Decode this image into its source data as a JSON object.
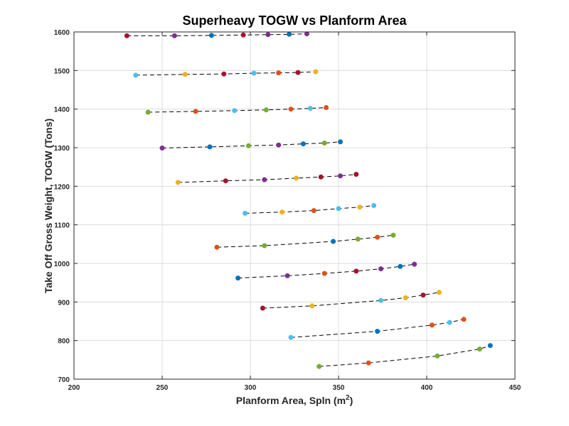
{
  "chart_data": {
    "type": "line",
    "title": "Superheavy TOGW vs Planform Area",
    "xlabel": {
      "prefix": "Planform Area, Spln (m",
      "sup": "2",
      "suffix": ")"
    },
    "ylabel": "Take Off Gross Weight, TOGW (Tons)",
    "xlim": [
      200,
      450
    ],
    "ylim": [
      700,
      1600
    ],
    "xticks": [
      200,
      250,
      300,
      350,
      400,
      450
    ],
    "yticks": [
      700,
      800,
      900,
      1000,
      1100,
      1200,
      1300,
      1400,
      1500,
      1600
    ],
    "grid": true,
    "legend": "none",
    "line_color": "#000000",
    "palette": [
      "#0072BD",
      "#D95319",
      "#EDB120",
      "#7E2F8E",
      "#77AC30",
      "#4DBEEE",
      "#A2142F"
    ],
    "series": [
      {
        "points": [
          [
            230,
            1590,
            6
          ],
          [
            257,
            1590,
            3
          ],
          [
            278,
            1591,
            0
          ],
          [
            296,
            1592,
            6
          ],
          [
            310,
            1593,
            3
          ],
          [
            322,
            1594,
            0
          ],
          [
            332,
            1595,
            3
          ]
        ]
      },
      {
        "points": [
          [
            235,
            1488,
            5
          ],
          [
            263,
            1490,
            2
          ],
          [
            285,
            1491,
            6
          ],
          [
            302,
            1493,
            5
          ],
          [
            316,
            1494,
            1
          ],
          [
            327,
            1495,
            6
          ],
          [
            337,
            1497,
            2
          ]
        ]
      },
      {
        "points": [
          [
            242,
            1392,
            4
          ],
          [
            269,
            1394,
            1
          ],
          [
            291,
            1396,
            5
          ],
          [
            309,
            1398,
            4
          ],
          [
            323,
            1400,
            1
          ],
          [
            334,
            1402,
            5
          ],
          [
            343,
            1404,
            1
          ]
        ]
      },
      {
        "points": [
          [
            250,
            1299,
            3
          ],
          [
            277,
            1302,
            0
          ],
          [
            299,
            1305,
            4
          ],
          [
            316,
            1307,
            3
          ],
          [
            330,
            1310,
            0
          ],
          [
            342,
            1312,
            4
          ],
          [
            351,
            1315,
            0
          ]
        ]
      },
      {
        "points": [
          [
            259,
            1210,
            2
          ],
          [
            286,
            1214,
            6
          ],
          [
            308,
            1217,
            3
          ],
          [
            326,
            1221,
            2
          ],
          [
            340,
            1224,
            6
          ],
          [
            351,
            1227,
            3
          ],
          [
            360,
            1231,
            6
          ]
        ]
      },
      {
        "points": [
          [
            297,
            1130,
            5
          ],
          [
            318,
            1133,
            2
          ],
          [
            336,
            1137,
            1
          ],
          [
            350,
            1142,
            5
          ],
          [
            362,
            1146,
            2
          ],
          [
            370,
            1150,
            5
          ]
        ]
      },
      {
        "points": [
          [
            281,
            1042,
            1
          ],
          [
            308,
            1046,
            4
          ],
          [
            347,
            1057,
            0
          ],
          [
            361,
            1063,
            4
          ],
          [
            372,
            1068,
            1
          ],
          [
            381,
            1073,
            4
          ]
        ]
      },
      {
        "points": [
          [
            293,
            962,
            0
          ],
          [
            321,
            968,
            3
          ],
          [
            342,
            974,
            1
          ],
          [
            360,
            980,
            6
          ],
          [
            374,
            986,
            3
          ],
          [
            385,
            992,
            0
          ],
          [
            393,
            998,
            3
          ]
        ]
      },
      {
        "points": [
          [
            307,
            884,
            6
          ],
          [
            335,
            890,
            2
          ],
          [
            374,
            904,
            5
          ],
          [
            388,
            911,
            2
          ],
          [
            398,
            918,
            6
          ],
          [
            407,
            925,
            2
          ]
        ]
      },
      {
        "points": [
          [
            323,
            808,
            5
          ],
          [
            372,
            824,
            0
          ],
          [
            403,
            840,
            1
          ],
          [
            413,
            847,
            5
          ],
          [
            421,
            855,
            1
          ]
        ]
      },
      {
        "points": [
          [
            339,
            733,
            4
          ],
          [
            367,
            742,
            1
          ],
          [
            406,
            760,
            4
          ],
          [
            430,
            778,
            4
          ],
          [
            436,
            787,
            0
          ]
        ]
      }
    ]
  }
}
